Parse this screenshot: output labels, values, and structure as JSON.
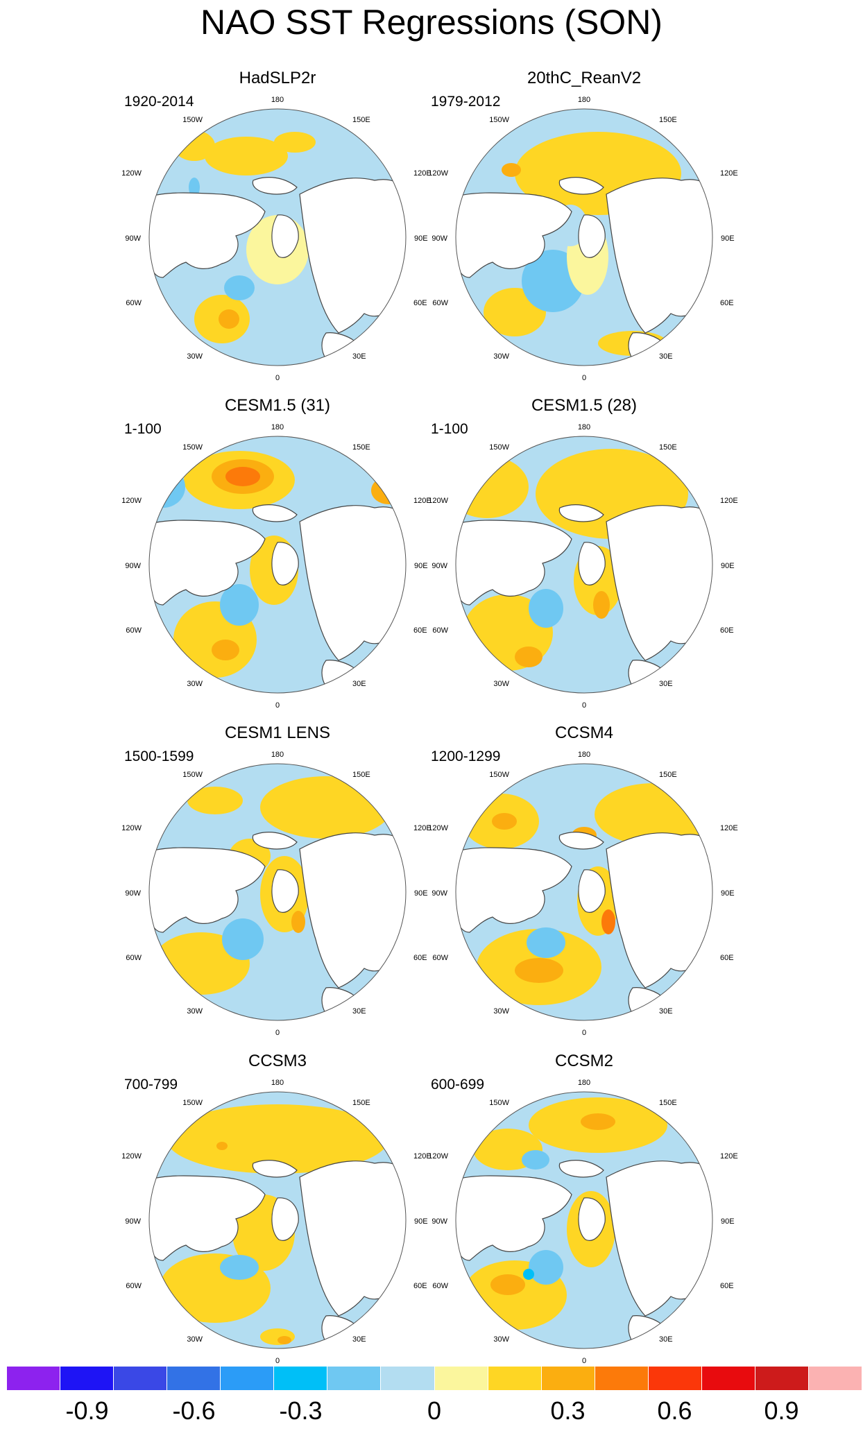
{
  "title": "NAO SST Regressions (SON)",
  "panels": [
    {
      "id": "hadslp2r",
      "title": "HadSLP2r",
      "years": "1920-2014",
      "blobs": [
        {
          "cx": 150,
          "cy": 330,
          "rx": 40,
          "ry": 35,
          "level": 0.2
        },
        {
          "cx": 160,
          "cy": 330,
          "rx": 15,
          "ry": 14,
          "level": 0.35
        },
        {
          "cx": 185,
          "cy": 95,
          "rx": 60,
          "ry": 28,
          "level": 0.2
        },
        {
          "cx": 255,
          "cy": 75,
          "rx": 30,
          "ry": 15,
          "level": 0.2
        },
        {
          "cx": 110,
          "cy": 80,
          "rx": 30,
          "ry": 22,
          "level": 0.2
        },
        {
          "cx": 230,
          "cy": 230,
          "rx": 45,
          "ry": 50,
          "level": 0.1
        },
        {
          "cx": 175,
          "cy": 285,
          "rx": 22,
          "ry": 18,
          "level": -0.2
        },
        {
          "cx": 110,
          "cy": 140,
          "rx": 8,
          "ry": 14,
          "level": -0.3
        }
      ]
    },
    {
      "id": "20thc-reanv2",
      "title": "20thC_ReanV2",
      "years": "1979-2012",
      "blobs": [
        {
          "cx": 250,
          "cy": 120,
          "rx": 120,
          "ry": 60,
          "level": 0.2
        },
        {
          "cx": 125,
          "cy": 115,
          "rx": 14,
          "ry": 10,
          "level": 0.35
        },
        {
          "cx": 330,
          "cy": 140,
          "rx": 16,
          "ry": 12,
          "level": 0.35
        },
        {
          "cx": 130,
          "cy": 320,
          "rx": 45,
          "ry": 35,
          "level": 0.15
        },
        {
          "cx": 185,
          "cy": 275,
          "rx": 45,
          "ry": 45,
          "level": -0.2
        },
        {
          "cx": 235,
          "cy": 240,
          "rx": 30,
          "ry": 55,
          "level": 0.1
        },
        {
          "cx": 300,
          "cy": 365,
          "rx": 50,
          "ry": 18,
          "level": 0.15
        },
        {
          "cx": 210,
          "cy": 195,
          "rx": 25,
          "ry": 30,
          "level": -0.15
        }
      ]
    },
    {
      "id": "cesm15-31",
      "title": "CESM1.5 (31)",
      "years": "1-100",
      "blobs": [
        {
          "cx": 175,
          "cy": 90,
          "rx": 80,
          "ry": 42,
          "level": 0.2
        },
        {
          "cx": 180,
          "cy": 85,
          "rx": 45,
          "ry": 25,
          "level": 0.35
        },
        {
          "cx": 180,
          "cy": 85,
          "rx": 25,
          "ry": 14,
          "level": 0.45
        },
        {
          "cx": 65,
          "cy": 100,
          "rx": 32,
          "ry": 30,
          "level": -0.2
        },
        {
          "cx": 140,
          "cy": 320,
          "rx": 60,
          "ry": 55,
          "level": 0.2
        },
        {
          "cx": 155,
          "cy": 335,
          "rx": 20,
          "ry": 15,
          "level": 0.35
        },
        {
          "cx": 225,
          "cy": 220,
          "rx": 35,
          "ry": 50,
          "level": 0.15
        },
        {
          "cx": 390,
          "cy": 105,
          "rx": 25,
          "ry": 20,
          "level": 0.3
        },
        {
          "cx": 100,
          "cy": 150,
          "rx": 40,
          "ry": 15,
          "level": -0.15
        },
        {
          "cx": 175,
          "cy": 270,
          "rx": 28,
          "ry": 30,
          "level": -0.2
        }
      ]
    },
    {
      "id": "cesm15-28",
      "title": "CESM1.5 (28)",
      "years": "1-100",
      "blobs": [
        {
          "cx": 270,
          "cy": 110,
          "rx": 110,
          "ry": 65,
          "level": 0.2
        },
        {
          "cx": 90,
          "cy": 100,
          "rx": 60,
          "ry": 45,
          "level": 0.2
        },
        {
          "cx": 120,
          "cy": 310,
          "rx": 65,
          "ry": 55,
          "level": 0.2
        },
        {
          "cx": 150,
          "cy": 345,
          "rx": 20,
          "ry": 15,
          "level": 0.35
        },
        {
          "cx": 250,
          "cy": 235,
          "rx": 35,
          "ry": 50,
          "level": 0.15
        },
        {
          "cx": 255,
          "cy": 270,
          "rx": 12,
          "ry": 20,
          "level": 0.35
        },
        {
          "cx": 175,
          "cy": 275,
          "rx": 25,
          "ry": 28,
          "level": -0.2
        }
      ]
    },
    {
      "id": "cesm1-lens",
      "title": "CESM1 LENS",
      "years": "1500-1599",
      "blobs": [
        {
          "cx": 300,
          "cy": 90,
          "rx": 95,
          "ry": 45,
          "level": 0.2
        },
        {
          "cx": 140,
          "cy": 80,
          "rx": 40,
          "ry": 20,
          "level": 0.15
        },
        {
          "cx": 120,
          "cy": 315,
          "rx": 70,
          "ry": 45,
          "level": 0.2
        },
        {
          "cx": 240,
          "cy": 215,
          "rx": 35,
          "ry": 55,
          "level": 0.15
        },
        {
          "cx": 180,
          "cy": 280,
          "rx": 30,
          "ry": 30,
          "level": -0.2
        },
        {
          "cx": 260,
          "cy": 255,
          "rx": 10,
          "ry": 16,
          "level": 0.35
        },
        {
          "cx": 190,
          "cy": 160,
          "rx": 30,
          "ry": 25,
          "level": 0.15
        }
      ]
    },
    {
      "id": "ccsm4",
      "title": "CCSM4",
      "years": "1200-1299",
      "blobs": [
        {
          "cx": 330,
          "cy": 100,
          "rx": 85,
          "ry": 45,
          "level": 0.2
        },
        {
          "cx": 110,
          "cy": 110,
          "rx": 55,
          "ry": 40,
          "level": 0.2
        },
        {
          "cx": 115,
          "cy": 110,
          "rx": 18,
          "ry": 12,
          "level": 0.35
        },
        {
          "cx": 230,
          "cy": 130,
          "rx": 18,
          "ry": 12,
          "level": 0.35
        },
        {
          "cx": 165,
          "cy": 320,
          "rx": 90,
          "ry": 55,
          "level": 0.2
        },
        {
          "cx": 165,
          "cy": 325,
          "rx": 35,
          "ry": 18,
          "level": 0.35
        },
        {
          "cx": 250,
          "cy": 225,
          "rx": 30,
          "ry": 50,
          "level": 0.15
        },
        {
          "cx": 265,
          "cy": 255,
          "rx": 10,
          "ry": 18,
          "level": 0.5
        },
        {
          "cx": 175,
          "cy": 285,
          "rx": 28,
          "ry": 22,
          "level": -0.2
        }
      ]
    },
    {
      "id": "ccsm3",
      "title": "CCSM3",
      "years": "700-799",
      "blobs": [
        {
          "cx": 230,
          "cy": 95,
          "rx": 160,
          "ry": 50,
          "level": 0.2
        },
        {
          "cx": 150,
          "cy": 105,
          "rx": 8,
          "ry": 6,
          "level": 0.35
        },
        {
          "cx": 140,
          "cy": 310,
          "rx": 80,
          "ry": 50,
          "level": 0.2
        },
        {
          "cx": 210,
          "cy": 230,
          "rx": 45,
          "ry": 55,
          "level": 0.15
        },
        {
          "cx": 175,
          "cy": 280,
          "rx": 28,
          "ry": 18,
          "level": -0.2
        },
        {
          "cx": 230,
          "cy": 380,
          "rx": 25,
          "ry": 12,
          "level": 0.2
        },
        {
          "cx": 240,
          "cy": 385,
          "rx": 10,
          "ry": 6,
          "level": 0.35
        }
      ]
    },
    {
      "id": "ccsm2",
      "title": "CCSM2",
      "years": "600-699",
      "blobs": [
        {
          "cx": 250,
          "cy": 75,
          "rx": 100,
          "ry": 40,
          "level": 0.2
        },
        {
          "cx": 250,
          "cy": 70,
          "rx": 25,
          "ry": 12,
          "level": 0.35
        },
        {
          "cx": 120,
          "cy": 110,
          "rx": 50,
          "ry": 30,
          "level": 0.15
        },
        {
          "cx": 160,
          "cy": 125,
          "rx": 20,
          "ry": 14,
          "level": -0.3
        },
        {
          "cx": 130,
          "cy": 320,
          "rx": 75,
          "ry": 50,
          "level": 0.2
        },
        {
          "cx": 120,
          "cy": 305,
          "rx": 25,
          "ry": 15,
          "level": 0.35
        },
        {
          "cx": 240,
          "cy": 225,
          "rx": 35,
          "ry": 55,
          "level": 0.15
        },
        {
          "cx": 175,
          "cy": 280,
          "rx": 25,
          "ry": 25,
          "level": -0.2
        },
        {
          "cx": 150,
          "cy": 290,
          "rx": 8,
          "ry": 8,
          "level": -0.35
        }
      ]
    }
  ],
  "axis_labels": {
    "n180": "180",
    "w150": "150W",
    "e150": "150E",
    "w120": "120W",
    "e120": "120E",
    "w90": "90W",
    "e90": "90E",
    "w60": "60W",
    "e60": "60E",
    "w30": "30W",
    "e30": "30E",
    "n0": "0"
  },
  "colorbar": {
    "colors": [
      "#8d22ee",
      "#1e14f5",
      "#3a48e6",
      "#3272e6",
      "#2b9cf7",
      "#00bff7",
      "#6fc8f2",
      "#b3ddf1",
      "#fbf69d",
      "#fed624",
      "#fbae10",
      "#fc7a0a",
      "#fb3709",
      "#e80b0e",
      "#cd1b1b",
      "#fbb2b2"
    ],
    "bounds": [
      -1.05,
      -0.9,
      -0.75,
      -0.6,
      -0.45,
      -0.3,
      -0.15,
      0,
      0.15,
      0.3,
      0.45,
      0.6,
      0.75,
      0.9,
      1.05
    ],
    "labels": [
      "-0.9",
      "-0.6",
      "-0.3",
      "0",
      "0.3",
      "0.6",
      "0.9"
    ],
    "label_positions": [
      1.5,
      3.5,
      5.5,
      8,
      10.5,
      12.5,
      14.5
    ]
  }
}
